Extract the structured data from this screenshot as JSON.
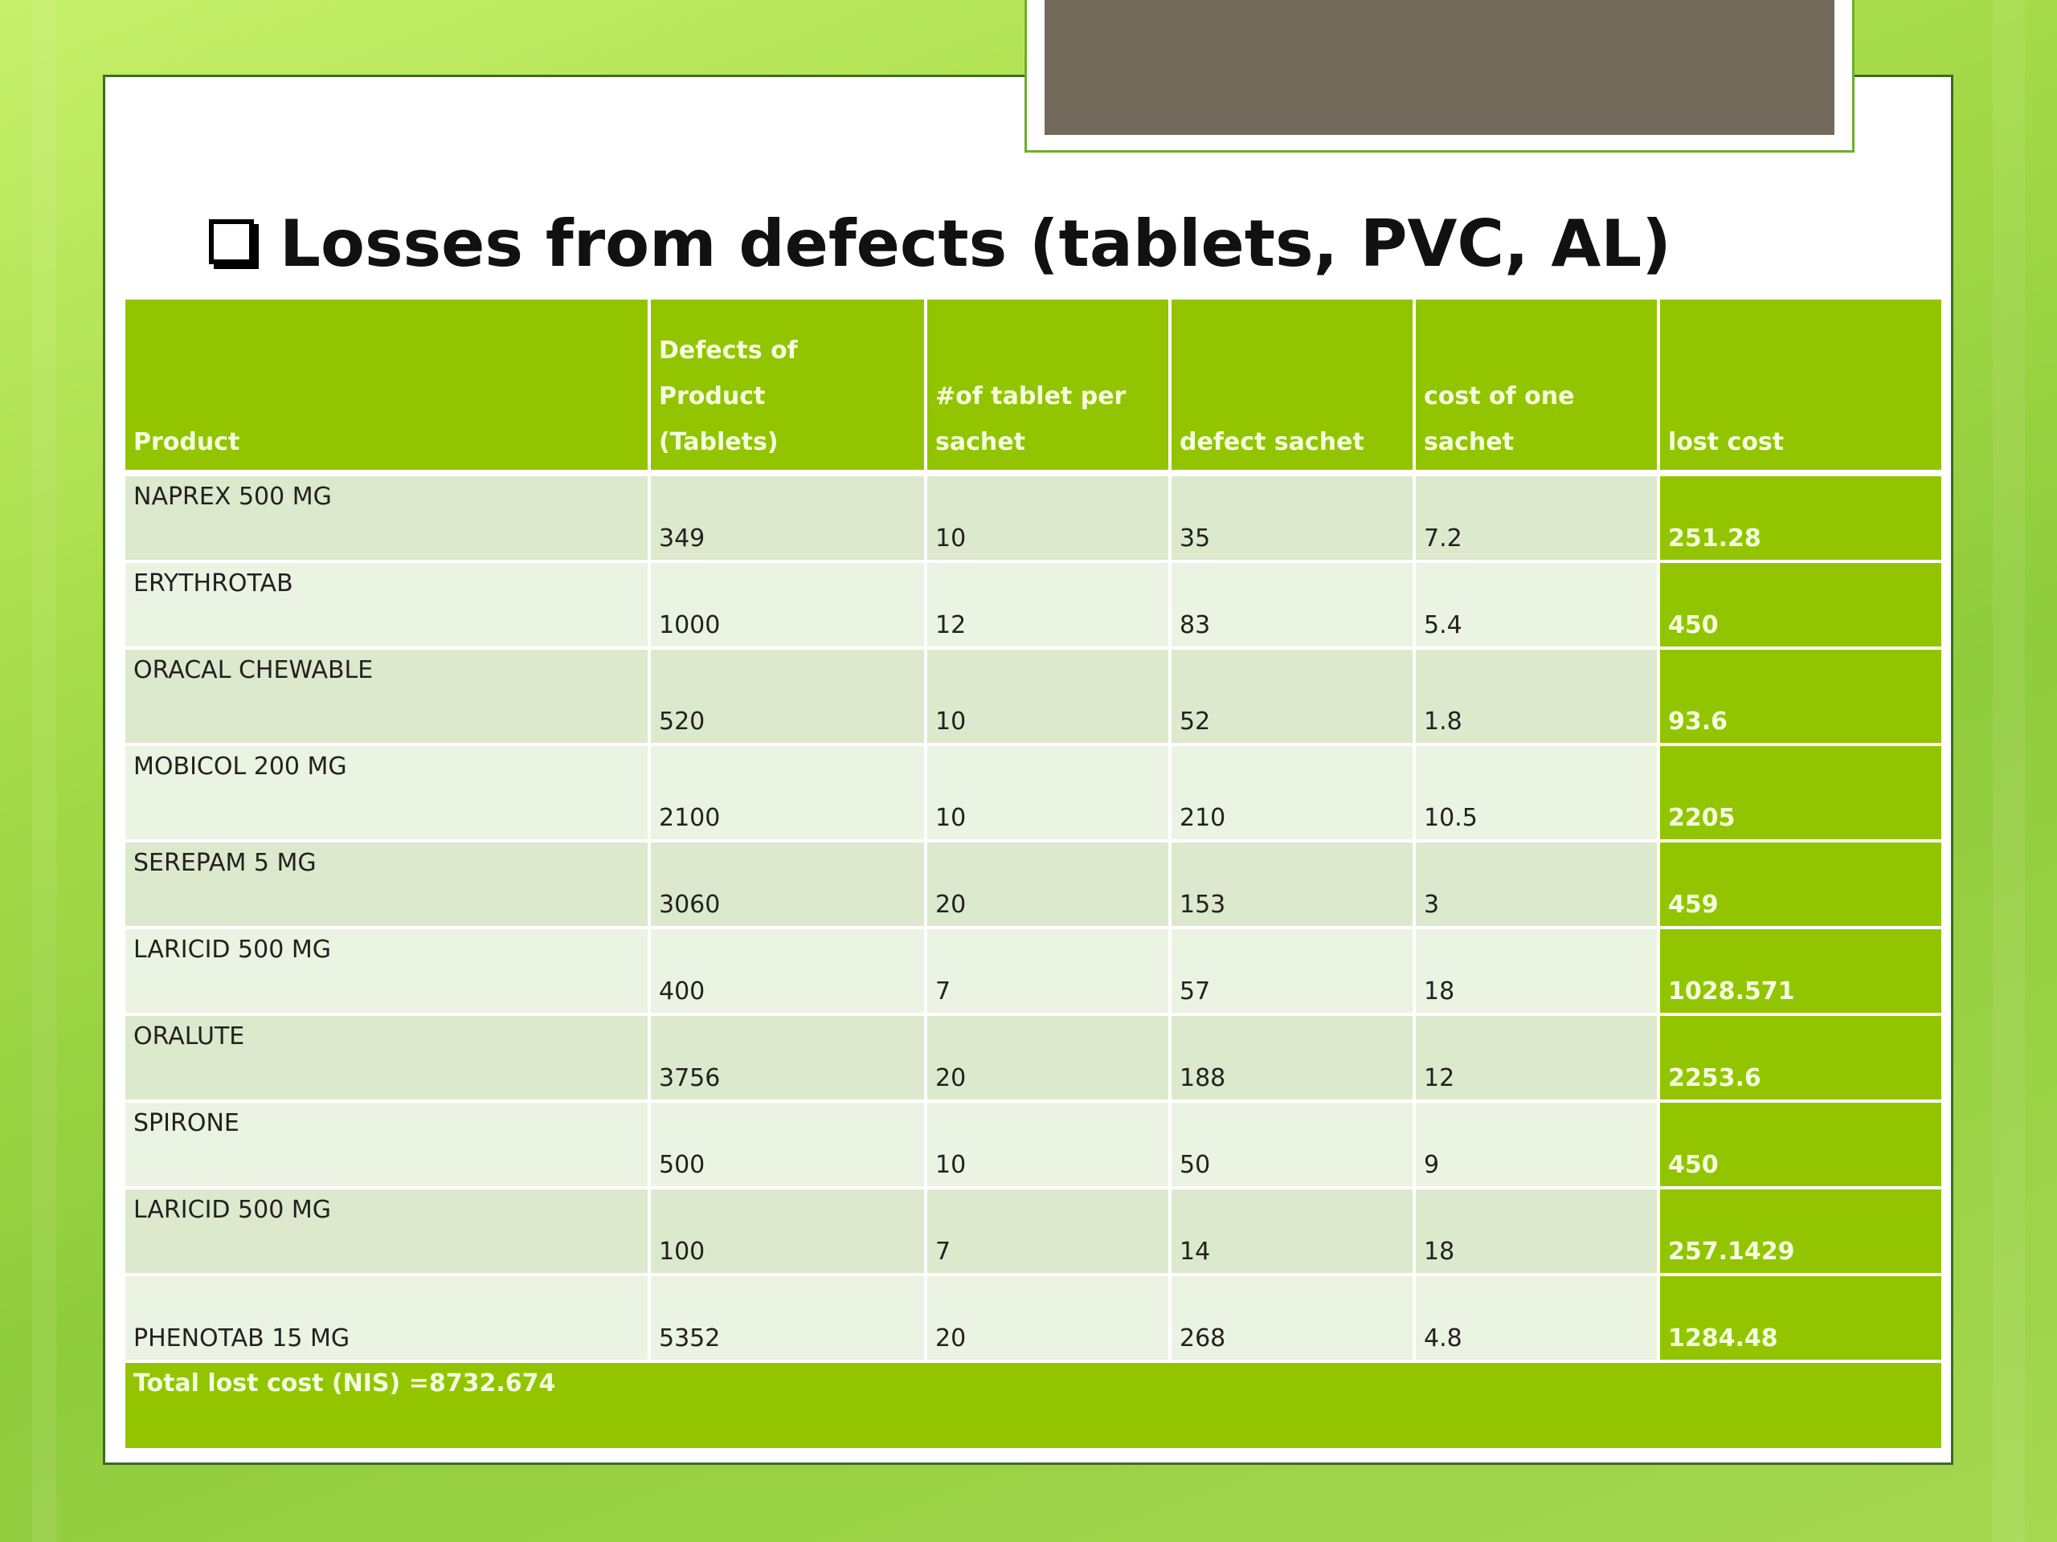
{
  "slide": {
    "title": "Losses from defects (tablets, PVC, AL)"
  },
  "table": {
    "headers": [
      [
        "Product"
      ],
      [
        "Defects of",
        "Product",
        "(Tablets)"
      ],
      [
        "#of tablet per",
        "sachet"
      ],
      [
        "defect sachet"
      ],
      [
        "cost of one",
        "sachet"
      ],
      [
        "lost cost"
      ]
    ],
    "rows": [
      [
        "NAPREX 500 MG",
        "349",
        "10",
        "35",
        "7.2",
        "251.28"
      ],
      [
        "ERYTHROTAB",
        "1000",
        "12",
        "83",
        "5.4",
        "450"
      ],
      [
        "ORACAL CHEWABLE",
        "520",
        "10",
        "52",
        "1.8",
        "93.6"
      ],
      [
        "MOBICOL 200 MG",
        "2100",
        "10",
        "210",
        "10.5",
        "2205"
      ],
      [
        "SEREPAM  5 MG",
        "3060",
        "20",
        "153",
        "3",
        "459"
      ],
      [
        "LARICID 500 MG",
        "400",
        "7",
        "57",
        "18",
        "1028.571"
      ],
      [
        "ORALUTE",
        "3756",
        "20",
        "188",
        "12",
        "2253.6"
      ],
      [
        "SPIRONE",
        "500",
        "10",
        "50",
        "9",
        "450"
      ],
      [
        "LARICID 500 MG",
        "100",
        "7",
        "14",
        "18",
        "257.1429"
      ],
      [
        "PHENOTAB 15 MG",
        "5352",
        "20",
        "268",
        "4.8",
        "1284.48"
      ]
    ],
    "total": "Total lost cost (NIS) =8732.674"
  },
  "colors": {
    "header_green": "#92c500",
    "row_odd": "#dde9cc",
    "row_even": "#ebf3e2",
    "tab_box": "#726a5a"
  }
}
